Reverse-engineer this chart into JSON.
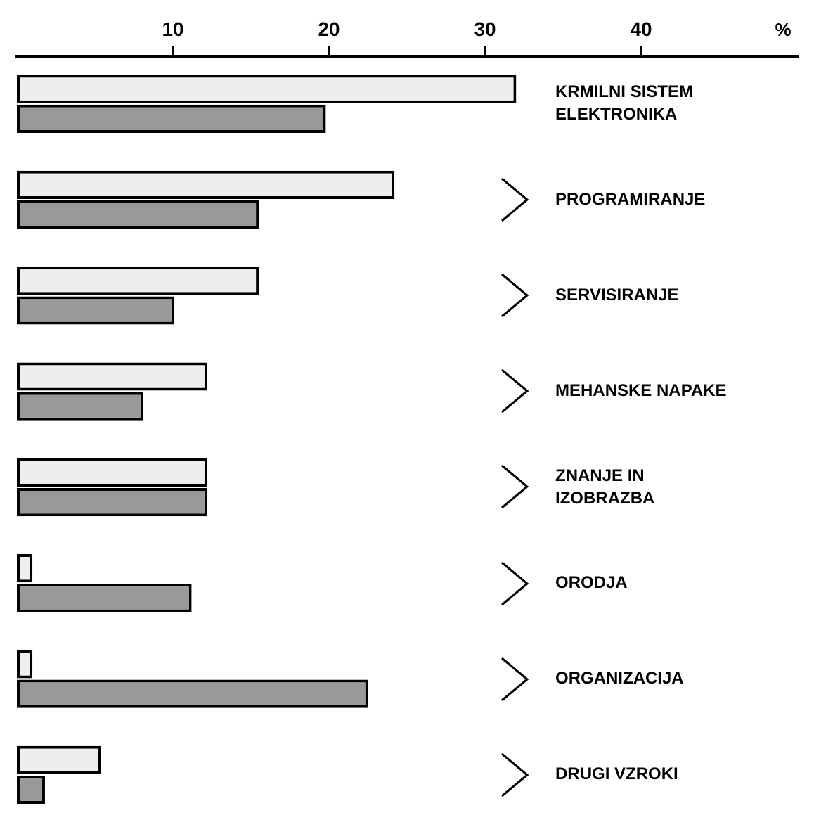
{
  "chart_data": {
    "type": "bar",
    "orientation": "horizontal",
    "xlabel": "%",
    "categories": [
      "KRMILNI SISTEM ELEKTRONIKA",
      "PROGRAMIRANJE",
      "SERVISIRANJE",
      "MEHANSKE NAPAKE",
      "ZNANJE IN IZOBRAZBA",
      "ORODJA",
      "ORGANIZACIJA",
      "DRUGI VZROKI"
    ],
    "series": [
      {
        "color": "#eeeeee",
        "values": [
          32,
          24.2,
          15.5,
          12.2,
          12.2,
          1,
          1,
          5.4
        ]
      },
      {
        "color": "#999999",
        "values": [
          19.8,
          15.5,
          10.1,
          8.1,
          12.2,
          11.2,
          22.5,
          1.8
        ]
      }
    ],
    "xlim": [
      0,
      50
    ],
    "xticks": [
      10,
      20,
      30,
      40
    ],
    "grid": false,
    "legend": false
  }
}
